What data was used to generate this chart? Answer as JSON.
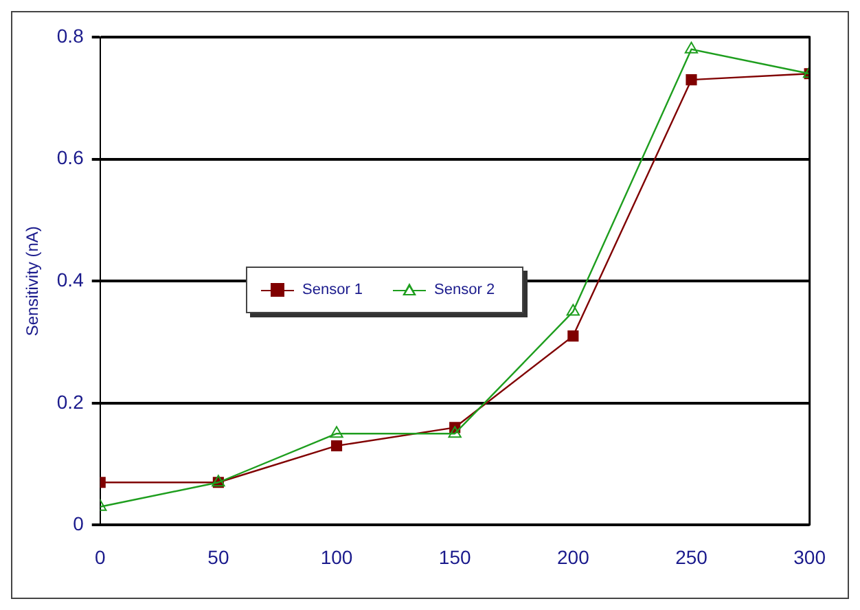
{
  "chart_data": {
    "type": "line",
    "ylabel": "Sensitivity (nA)",
    "x": [
      0,
      50,
      100,
      150,
      200,
      250,
      300
    ],
    "xlim": [
      0,
      300
    ],
    "xticks": [
      0,
      50,
      100,
      150,
      200,
      250,
      300
    ],
    "ylim": [
      0,
      0.8
    ],
    "yticks": [
      0,
      0.2,
      0.4,
      0.6,
      0.8
    ],
    "grid": "y",
    "legend": "left",
    "line_style": "solid",
    "series": [
      {
        "name": "Sensor 1",
        "color": "#800000",
        "marker": "square",
        "values": [
          0.07,
          0.07,
          0.13,
          0.16,
          0.31,
          0.73,
          0.74
        ]
      },
      {
        "name": "Sensor 2",
        "color": "#1e9e1e",
        "marker": "triangle",
        "values": [
          0.03,
          0.07,
          0.15,
          0.15,
          0.35,
          0.78,
          0.74
        ]
      }
    ]
  }
}
